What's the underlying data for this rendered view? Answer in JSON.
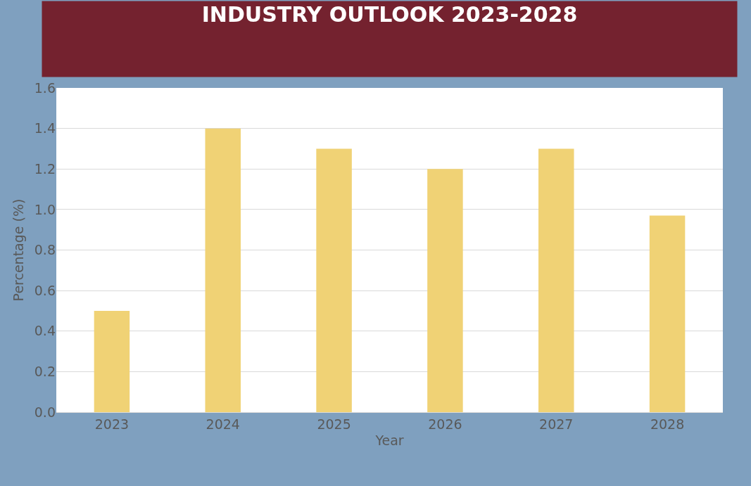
{
  "chart_data": {
    "type": "bar",
    "title": "INDUSTRY OUTLOOK 2023-2028",
    "xlabel": "Year",
    "ylabel": "Percentage (%)",
    "categories": [
      "2023",
      "2024",
      "2025",
      "2026",
      "2027",
      "2028"
    ],
    "values": [
      0.5,
      1.4,
      1.3,
      1.2,
      1.3,
      0.97
    ],
    "color": "#f0d275",
    "ylim": [
      0,
      1.6
    ],
    "yticks": [
      {
        "value": 0,
        "label": "0.0"
      },
      {
        "value": 0.2,
        "label": "0.2"
      },
      {
        "value": 0.4,
        "label": "0.4"
      },
      {
        "value": 0.6,
        "label": "0.6"
      },
      {
        "value": 0.8,
        "label": "0.8"
      },
      {
        "value": 1.0,
        "label": "1.0"
      },
      {
        "value": 1.2,
        "label": "1.2"
      },
      {
        "value": 1.4,
        "label": "1.4"
      },
      {
        "value": 1.6,
        "label": "1.6"
      }
    ],
    "grid": "y",
    "legend": false
  }
}
